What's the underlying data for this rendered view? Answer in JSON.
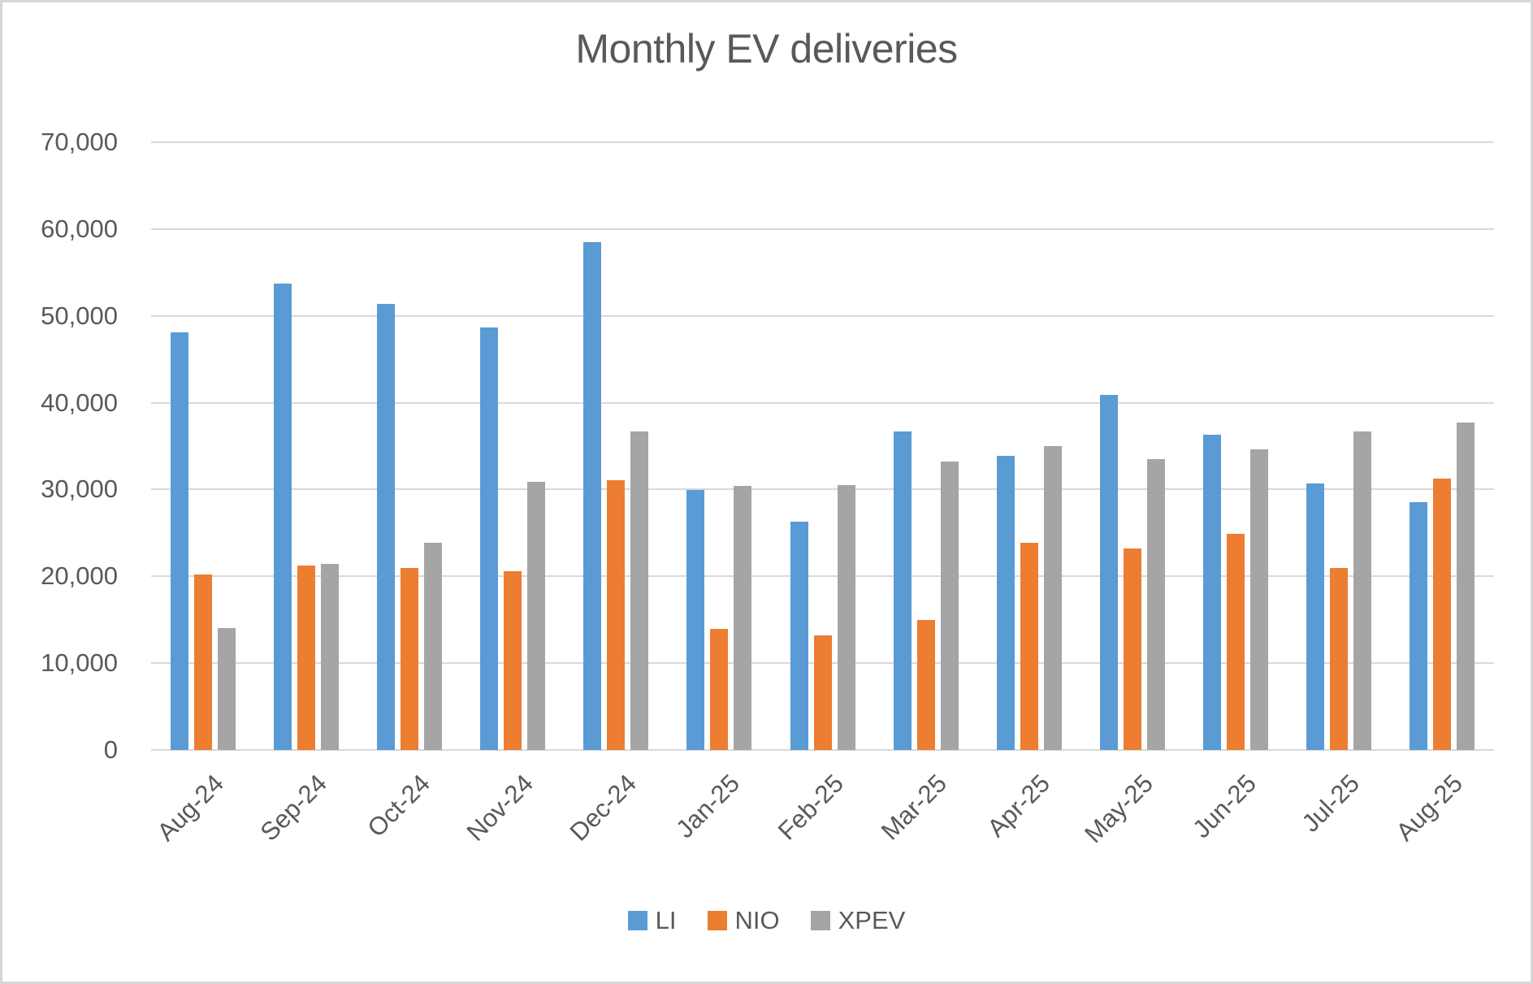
{
  "chart_data": {
    "type": "bar",
    "title": "Monthly EV deliveries",
    "categories": [
      "Aug-24",
      "Sep-24",
      "Oct-24",
      "Nov-24",
      "Dec-24",
      "Jan-25",
      "Feb-25",
      "Mar-25",
      "Apr-25",
      "May-25",
      "Jun-25",
      "Jul-25",
      "Aug-25"
    ],
    "series": [
      {
        "name": "LI",
        "color": "#5B9BD5",
        "values": [
          48100,
          53700,
          51400,
          48700,
          58500,
          29900,
          26300,
          36700,
          33900,
          40900,
          36300,
          30700,
          28500
        ]
      },
      {
        "name": "NIO",
        "color": "#ED7D31",
        "values": [
          20200,
          21200,
          21000,
          20600,
          31100,
          13900,
          13200,
          15000,
          23900,
          23200,
          24900,
          21000,
          31300
        ]
      },
      {
        "name": "XPEV",
        "color": "#A5A5A5",
        "values": [
          14000,
          21400,
          23900,
          30900,
          36700,
          30400,
          30500,
          33200,
          35000,
          33500,
          34600,
          36700,
          37700
        ]
      }
    ],
    "ylim": [
      0,
      70000
    ],
    "y_ticks": [
      {
        "value": 0,
        "label": "0"
      },
      {
        "value": 10000,
        "label": "10,000"
      },
      {
        "value": 20000,
        "label": "20,000"
      },
      {
        "value": 30000,
        "label": "30,000"
      },
      {
        "value": 40000,
        "label": "40,000"
      },
      {
        "value": 50000,
        "label": "50,000"
      },
      {
        "value": 60000,
        "label": "60,000"
      },
      {
        "value": 70000,
        "label": "70,000"
      }
    ],
    "xlabel": "",
    "ylabel": "",
    "grid": "horizontal",
    "legend_position": "bottom",
    "text_color": "#595959",
    "gridline_color": "#D9D9D9",
    "axis_line_color": "#D9D9D9",
    "border_color": "#D6D6D6",
    "background": "#FFFFFF"
  }
}
